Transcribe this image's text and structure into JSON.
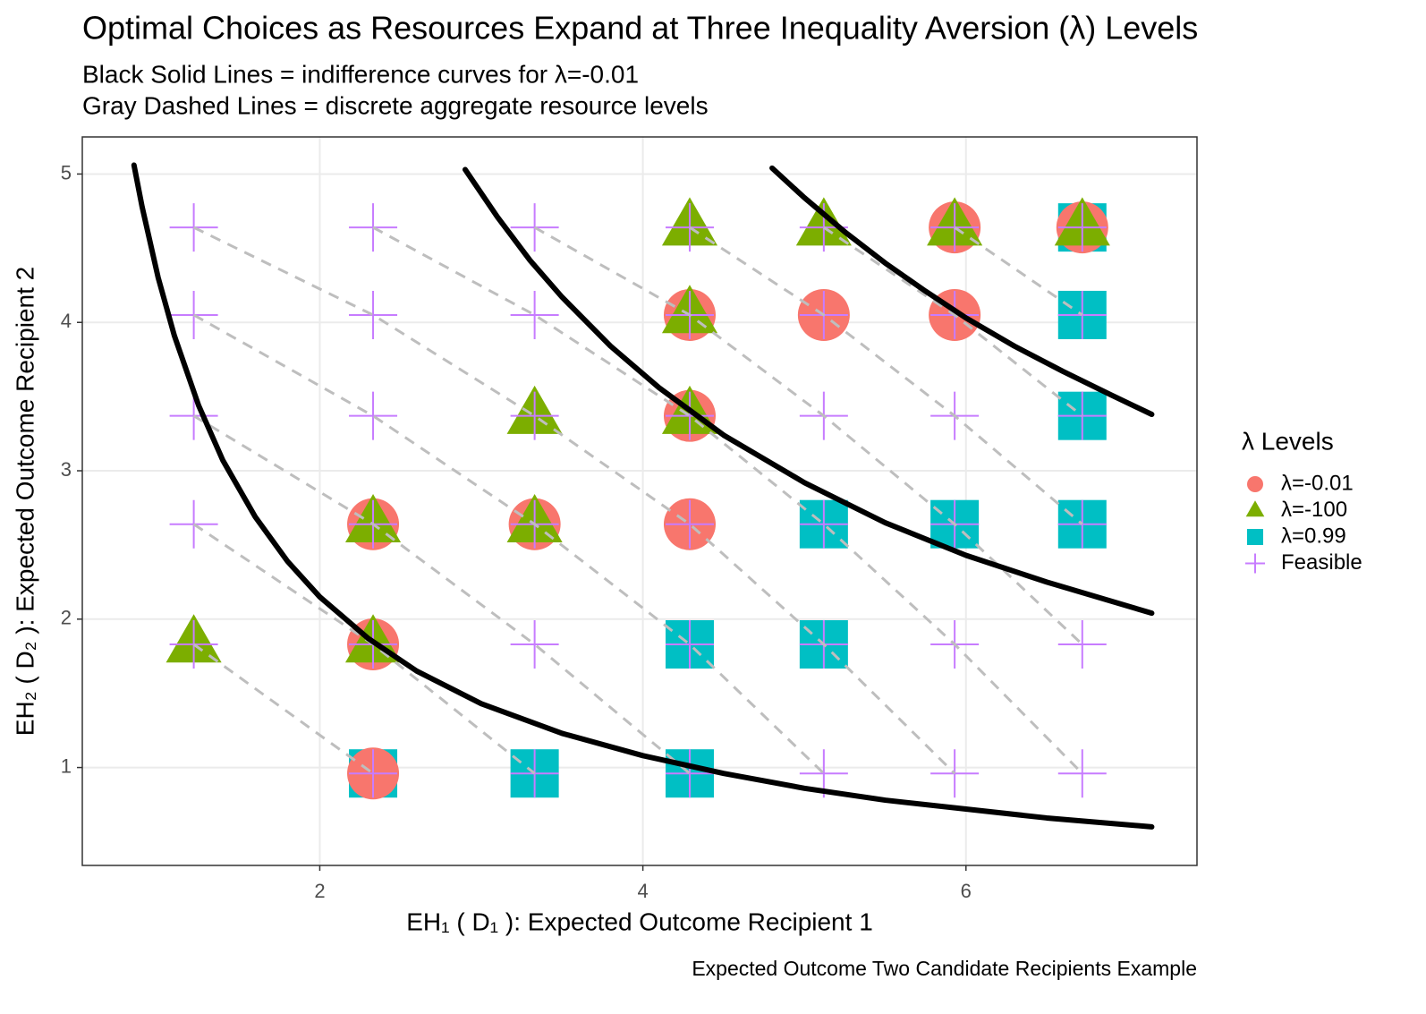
{
  "chart_data": {
    "type": "scatter",
    "title": "Optimal Choices as Resources Expand at Three Inequality Aversion (λ) Levels",
    "subtitle": [
      "Black Solid Lines = indifference curves for λ=-0.01",
      "Gray Dashed Lines = discrete aggregate resource levels"
    ],
    "x_label": "EH₁ ( D₁ ):  Expected Outcome Recipient 1",
    "y_label": "EH₂ ( D₂ ):  Expected Outcome Recipient 2",
    "caption": "Expected Outcome Two Candidate Recipients Example",
    "legend_title": "λ Levels",
    "xlim": [
      0.53,
      7.43
    ],
    "ylim": [
      0.34,
      5.25
    ],
    "xticks": [
      2,
      4,
      6
    ],
    "yticks": [
      1,
      2,
      3,
      4,
      5
    ],
    "grid": true,
    "series": [
      {
        "name": "λ=0.99",
        "color": "#00BFC4",
        "shape": "square",
        "x": [
          2.33,
          3.33,
          4.29,
          4.29,
          5.12,
          5.12,
          5.93,
          6.72,
          6.72,
          6.72,
          6.72
        ],
        "y": [
          0.96,
          0.96,
          0.96,
          1.83,
          1.83,
          2.64,
          2.64,
          2.64,
          3.37,
          4.05,
          4.64
        ]
      },
      {
        "name": "λ=-0.01",
        "color": "#F8766D",
        "shape": "circle",
        "x": [
          2.33,
          2.33,
          2.33,
          3.33,
          4.29,
          4.29,
          4.29,
          5.12,
          5.93,
          5.93,
          6.72
        ],
        "y": [
          0.96,
          1.83,
          2.64,
          2.64,
          2.64,
          3.37,
          4.05,
          4.05,
          4.05,
          4.64,
          4.64
        ]
      },
      {
        "name": "λ=-100",
        "color": "#7CAE00",
        "shape": "triangle",
        "x": [
          1.22,
          2.33,
          2.33,
          3.33,
          3.33,
          4.29,
          4.29,
          4.29,
          5.12,
          5.93,
          6.72
        ],
        "y": [
          1.83,
          1.83,
          2.64,
          2.64,
          3.37,
          3.37,
          4.05,
          4.64,
          4.64,
          4.64,
          4.64
        ]
      },
      {
        "name": "Feasible",
        "color": "#C77CFF",
        "shape": "plus",
        "x": [
          1.22,
          1.22,
          1.22,
          1.22,
          1.22,
          2.33,
          2.33,
          2.33,
          2.33,
          2.33,
          2.33,
          3.33,
          3.33,
          3.33,
          3.33,
          3.33,
          3.33,
          4.29,
          4.29,
          4.29,
          4.29,
          4.29,
          4.29,
          5.12,
          5.12,
          5.12,
          5.12,
          5.12,
          5.12,
          5.93,
          5.93,
          5.93,
          5.93,
          5.93,
          5.93,
          6.72,
          6.72,
          6.72,
          6.72,
          6.72,
          6.72
        ],
        "y": [
          1.83,
          2.64,
          3.37,
          4.05,
          4.64,
          0.96,
          1.83,
          2.64,
          3.37,
          4.05,
          4.64,
          0.96,
          1.83,
          2.64,
          3.37,
          4.05,
          4.64,
          0.96,
          1.83,
          2.64,
          3.37,
          4.05,
          4.64,
          0.96,
          1.83,
          2.64,
          3.37,
          4.05,
          4.64,
          0.96,
          1.83,
          2.64,
          3.37,
          4.05,
          4.64,
          0.96,
          1.83,
          2.64,
          3.37,
          4.05,
          4.64
        ]
      }
    ],
    "curves": [
      {
        "color": "#000000",
        "x": [
          0.85,
          0.9,
          1.0,
          1.1,
          1.25,
          1.4,
          1.6,
          1.8,
          2.0,
          2.3,
          2.6,
          3.0,
          3.5,
          4.0,
          4.5,
          5.0,
          5.5,
          6.0,
          6.5,
          7.15
        ],
        "y": [
          5.06,
          4.78,
          4.3,
          3.91,
          3.44,
          3.07,
          2.69,
          2.39,
          2.15,
          1.87,
          1.65,
          1.43,
          1.23,
          1.08,
          0.96,
          0.86,
          0.78,
          0.72,
          0.66,
          0.6
        ]
      },
      {
        "color": "#000000",
        "x": [
          2.9,
          3.1,
          3.3,
          3.5,
          3.8,
          4.1,
          4.5,
          5.0,
          5.5,
          6.0,
          6.5,
          7.15
        ],
        "y": [
          5.03,
          4.71,
          4.42,
          4.17,
          3.84,
          3.56,
          3.24,
          2.92,
          2.65,
          2.43,
          2.25,
          2.04
        ]
      },
      {
        "color": "#000000",
        "x": [
          4.8,
          5.0,
          5.25,
          5.5,
          5.75,
          6.0,
          6.3,
          6.6,
          6.9,
          7.15
        ],
        "y": [
          5.04,
          4.84,
          4.61,
          4.4,
          4.21,
          4.03,
          3.84,
          3.67,
          3.51,
          3.38
        ]
      }
    ]
  }
}
